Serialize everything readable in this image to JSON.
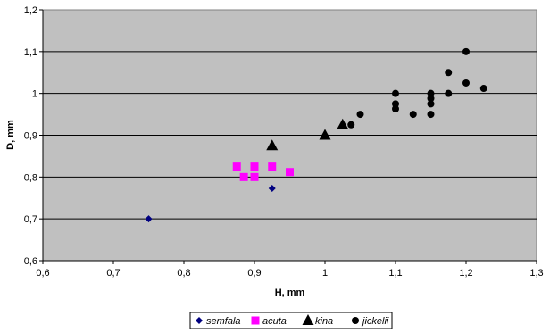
{
  "chart_data": {
    "type": "scatter",
    "title": "",
    "xlabel": "H, mm",
    "ylabel": "D, mm",
    "xlim": [
      0.6,
      1.3
    ],
    "ylim": [
      0.6,
      1.2
    ],
    "xticks": [
      "0,6",
      "0,7",
      "0,8",
      "0,9",
      "1",
      "1,1",
      "1,2",
      "1,3"
    ],
    "yticks": [
      "0,6",
      "0,7",
      "0,8",
      "0,9",
      "1",
      "1,1",
      "1,2"
    ],
    "grid": "horizontal major gridlines",
    "legend_position": "bottom",
    "plot_background": "#c0c0c0",
    "series": [
      {
        "name": "semfala",
        "marker": "diamond",
        "color": "#000080",
        "points": [
          [
            0.75,
            0.7
          ],
          [
            0.925,
            0.773
          ]
        ]
      },
      {
        "name": "acuta",
        "marker": "square",
        "color": "#ff00ff",
        "points": [
          [
            0.875,
            0.825
          ],
          [
            0.885,
            0.8
          ],
          [
            0.9,
            0.825
          ],
          [
            0.9,
            0.8
          ],
          [
            0.925,
            0.825
          ],
          [
            0.95,
            0.812
          ]
        ]
      },
      {
        "name": "kina",
        "marker": "triangle",
        "color": "#000000",
        "points": [
          [
            0.925,
            0.875
          ],
          [
            1.0,
            0.9
          ],
          [
            1.025,
            0.925
          ]
        ]
      },
      {
        "name": "jickelii",
        "marker": "circle",
        "color": "#000000",
        "points": [
          [
            1.037,
            0.925
          ],
          [
            1.05,
            0.95
          ],
          [
            1.1,
            1.0
          ],
          [
            1.1,
            0.975
          ],
          [
            1.1,
            0.963
          ],
          [
            1.125,
            0.95
          ],
          [
            1.15,
            1.0
          ],
          [
            1.15,
            0.988
          ],
          [
            1.15,
            0.975
          ],
          [
            1.15,
            0.95
          ],
          [
            1.175,
            1.05
          ],
          [
            1.175,
            1.0
          ],
          [
            1.2,
            1.1
          ],
          [
            1.2,
            1.025
          ],
          [
            1.225,
            1.012
          ]
        ]
      }
    ]
  }
}
